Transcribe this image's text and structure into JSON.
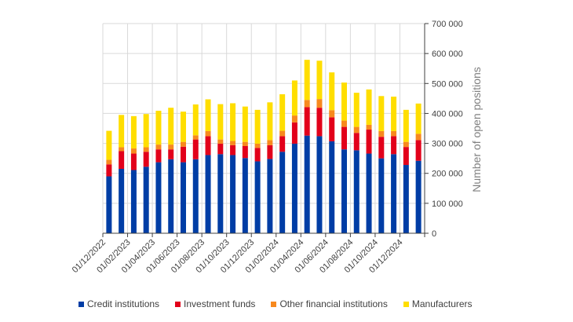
{
  "chart_data": {
    "type": "bar",
    "stacked": true,
    "title": "",
    "xlabel": "",
    "ylabel": "Number of open positions",
    "ylim": [
      0,
      700000
    ],
    "yticks": [
      0,
      100000,
      200000,
      300000,
      400000,
      500000,
      600000,
      700000
    ],
    "ytick_labels": [
      "0",
      "100 000",
      "200 000",
      "300 000",
      "400 000",
      "500 000",
      "600 000",
      "700 000"
    ],
    "y_axis_side": "right",
    "grid": true,
    "legend_position": "bottom",
    "categories": [
      "12/2022",
      "01/2023",
      "02/2023",
      "03/2023",
      "04/2023",
      "05/2023",
      "06/2023",
      "07/2023",
      "08/2023",
      "09/2023",
      "10/2023",
      "11/2023",
      "12/2023",
      "01/2024",
      "02/2024",
      "03/2024",
      "04/2024",
      "05/2024",
      "06/2024",
      "07/2024",
      "08/2024",
      "09/2024",
      "10/2024",
      "11/2024",
      "12/2024",
      "01/2025"
    ],
    "xtick_labels": [
      "01/12/2022",
      "01/02/2023",
      "01/04/2023",
      "01/06/2023",
      "01/08/2023",
      "01/10/2023",
      "01/12/2023",
      "01/02/2024",
      "01/04/2024",
      "01/06/2024",
      "01/08/2024",
      "01/10/2024",
      "01/12/2024"
    ],
    "series": [
      {
        "name": "Credit institutions",
        "color": "#003DA5",
        "values": [
          190000,
          215000,
          211000,
          222000,
          237000,
          247000,
          237000,
          247000,
          261000,
          264000,
          261000,
          251000,
          240000,
          248000,
          272000,
          299000,
          326000,
          324000,
          307000,
          280000,
          277000,
          266000,
          250000,
          264000,
          228000,
          242000
        ]
      },
      {
        "name": "Investment funds",
        "color": "#E2001A",
        "values": [
          40000,
          59000,
          55000,
          50000,
          43000,
          33000,
          52000,
          66000,
          63000,
          35000,
          33000,
          40000,
          45000,
          46000,
          52000,
          71000,
          95000,
          95000,
          80000,
          75000,
          58000,
          80000,
          72000,
          60000,
          60000,
          69000
        ]
      },
      {
        "name": "Other financial institutions",
        "color": "#F7891E",
        "values": [
          15000,
          13000,
          17000,
          15000,
          16000,
          16000,
          16000,
          14000,
          17000,
          14000,
          14000,
          14000,
          14000,
          17000,
          18000,
          23000,
          24000,
          29000,
          24000,
          21000,
          20000,
          16000,
          19000,
          17000,
          17000,
          21000
        ]
      },
      {
        "name": "Manufacturers",
        "color": "#FFDE00",
        "values": [
          97000,
          108000,
          108000,
          111000,
          113000,
          123000,
          101000,
          103000,
          106000,
          118000,
          126000,
          118000,
          113000,
          126000,
          122000,
          117000,
          134000,
          128000,
          126000,
          127000,
          114000,
          118000,
          117000,
          115000,
          107000,
          101000
        ]
      }
    ]
  }
}
